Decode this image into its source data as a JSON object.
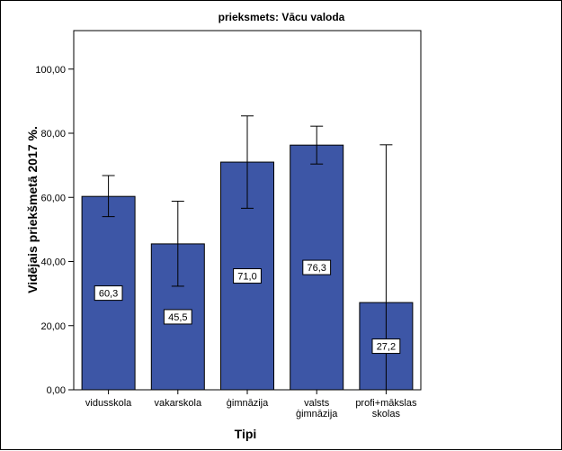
{
  "chart_data": {
    "type": "bar",
    "title": "prieksmets: Vācu valoda",
    "xlabel": "Tipi",
    "ylabel": "Vidējais priekšmetā 2017 %.",
    "categories": [
      [
        "vidusskola"
      ],
      [
        "vakarskola"
      ],
      [
        "ģimnāzija"
      ],
      [
        "valsts",
        "ģimnāzija"
      ],
      [
        "profi+mākslas",
        "skolas"
      ]
    ],
    "values": [
      60.3,
      45.5,
      71.0,
      76.3,
      27.2
    ],
    "data_labels": [
      "60,3",
      "45,5",
      "71,0",
      "76,3",
      "27,2"
    ],
    "error_low": [
      54.0,
      32.3,
      56.6,
      70.4,
      0
    ],
    "error_high": [
      66.8,
      58.8,
      85.4,
      82.2,
      76.4
    ],
    "ylim": [
      0,
      112
    ],
    "yticks": [
      0,
      20,
      40,
      60,
      80,
      100
    ],
    "ytick_labels": [
      "0,00",
      "20,00",
      "40,00",
      "60,00",
      "80,00",
      "100,00"
    ],
    "grid": false,
    "colors": {
      "bar": "#3d56a6",
      "bar_edge": "#000000",
      "error": "#000000"
    }
  }
}
